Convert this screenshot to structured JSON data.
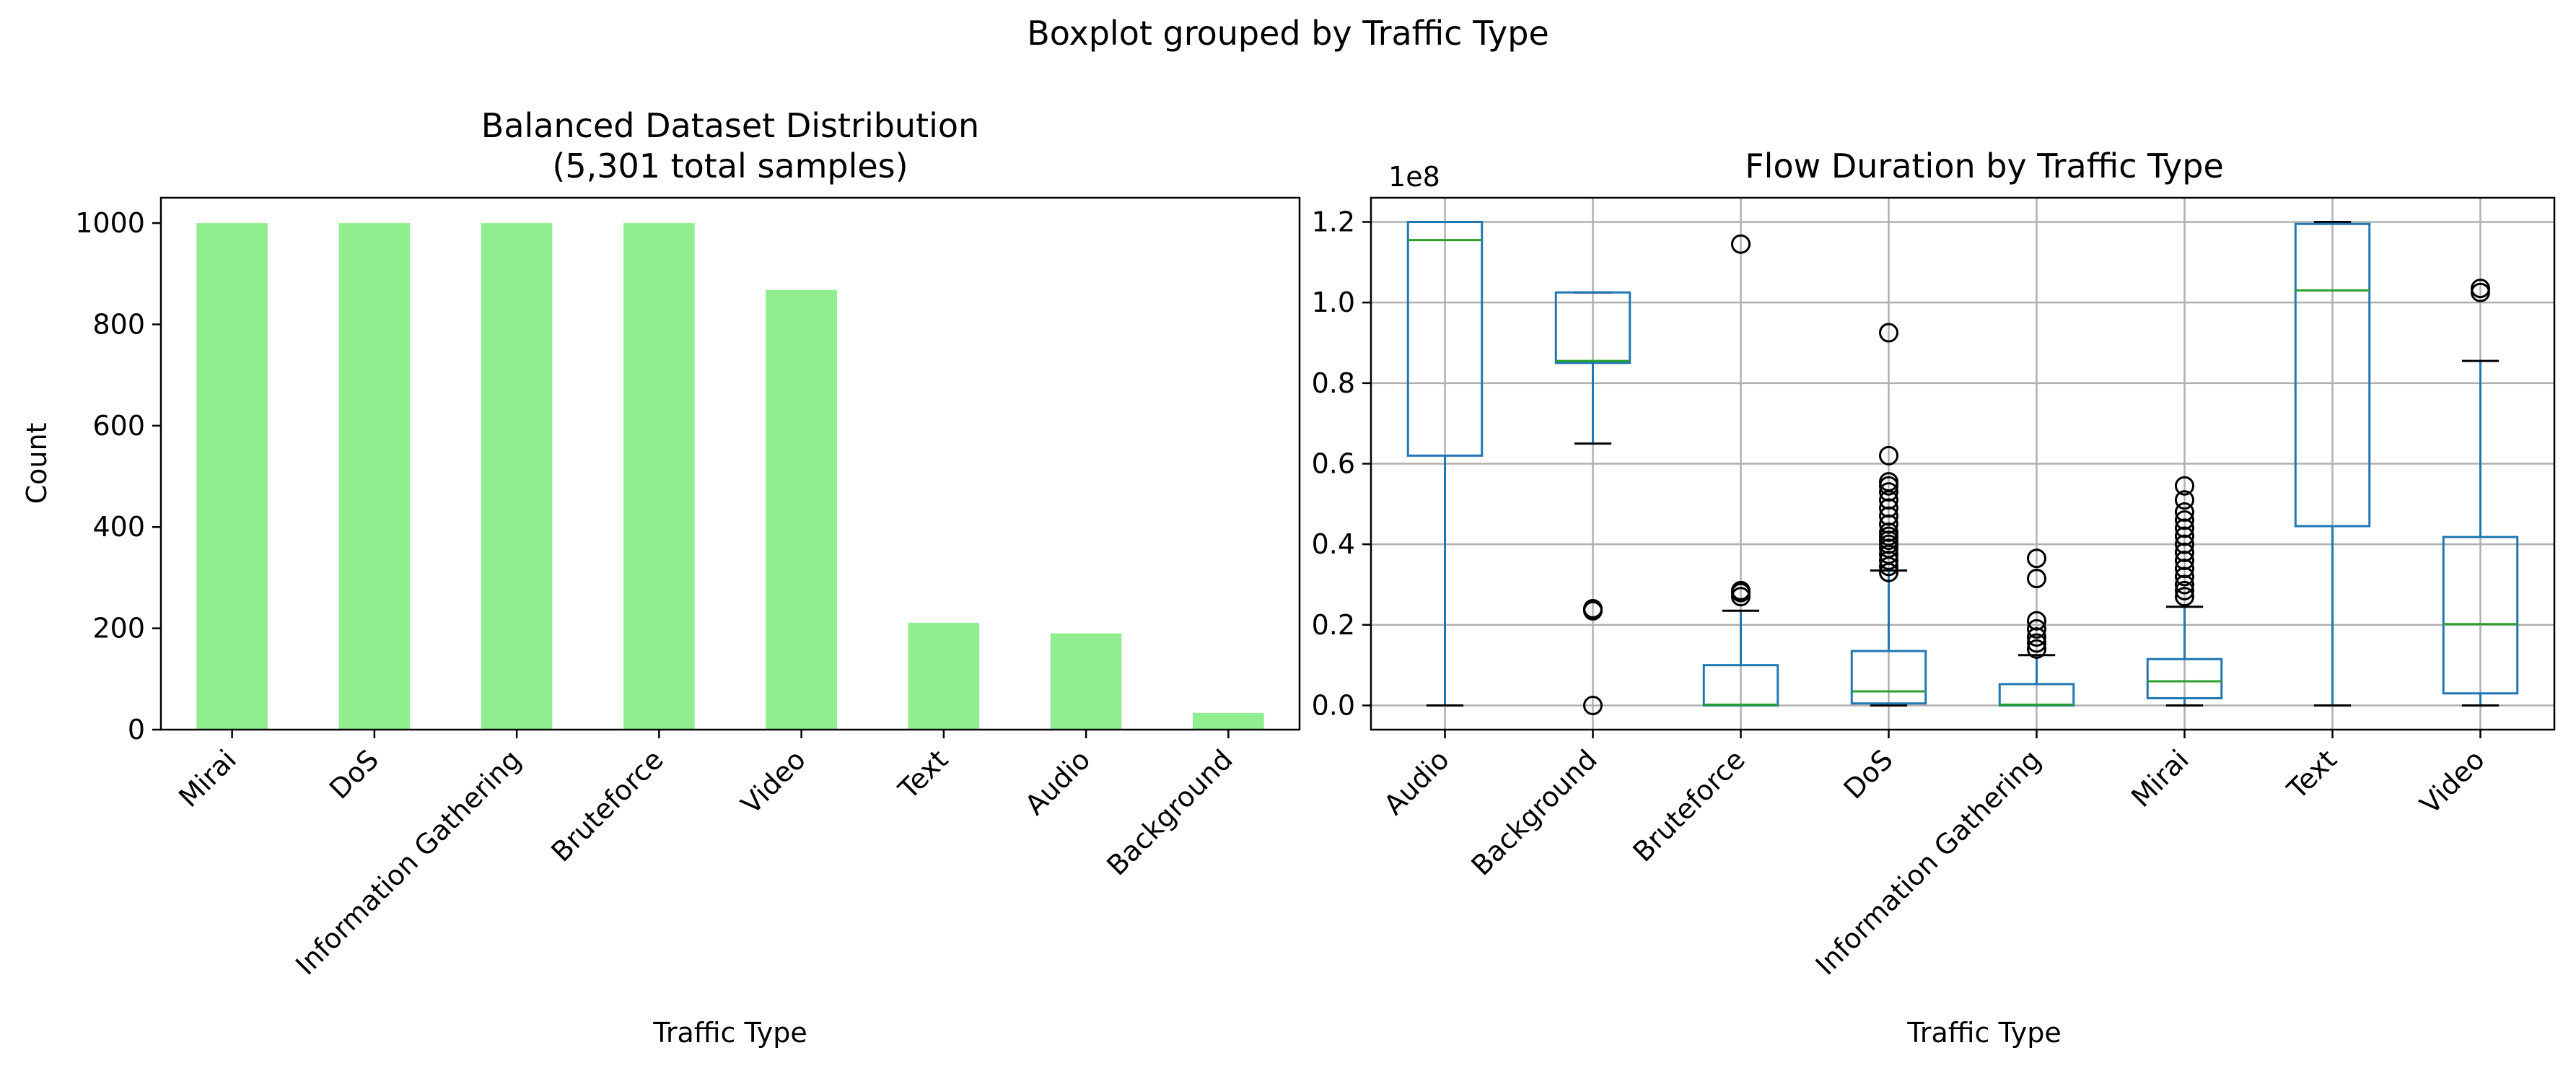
{
  "suptitle": "Boxplot grouped by Traffic Type",
  "chart_data": [
    {
      "type": "bar",
      "title_line1": "Balanced Dataset Distribution",
      "title_line2": "(5,301 total samples)",
      "xlabel": "Traffic Type",
      "ylabel": "Count",
      "categories": [
        "Mirai",
        "DoS",
        "Information Gathering",
        "Bruteforce",
        "Video",
        "Text",
        "Audio",
        "Background"
      ],
      "values": [
        1000,
        1000,
        1000,
        1000,
        868,
        211,
        190,
        33
      ],
      "ylim": [
        0,
        1050
      ],
      "yticks": [
        0,
        200,
        400,
        600,
        800,
        1000
      ],
      "bar_color": "#90ee90",
      "grid": false
    },
    {
      "type": "box",
      "title": "Flow Duration by Traffic Type",
      "xlabel": "Traffic Type",
      "ylabel": "",
      "offset_label": "1e8",
      "ylim": [
        -0.06,
        1.26
      ],
      "yticks": [
        "0.0",
        "0.2",
        "0.4",
        "0.6",
        "0.8",
        "1.0",
        "1.2"
      ],
      "grid": true,
      "box_color": "#1f77b4",
      "median_color": "#2ca02c",
      "categories": [
        "Audio",
        "Background",
        "Bruteforce",
        "DoS",
        "Information Gathering",
        "Mirai",
        "Text",
        "Video"
      ],
      "boxes": [
        {
          "whislo": 0.0,
          "q1": 0.62,
          "med": 1.155,
          "q3": 1.2,
          "whishi": 1.2,
          "fliers": []
        },
        {
          "whislo": 0.65,
          "q1": 0.85,
          "med": 0.855,
          "q3": 1.025,
          "whishi": 1.025,
          "fliers": [
            0.24,
            0.235,
            0.0
          ]
        },
        {
          "whislo": 0.0,
          "q1": 0.0,
          "med": 0.002,
          "q3": 0.1,
          "whishi": 0.235,
          "fliers": [
            0.27,
            0.28,
            0.285,
            1.145
          ]
        },
        {
          "whislo": 0.0,
          "q1": 0.005,
          "med": 0.035,
          "q3": 0.135,
          "whishi": 0.335,
          "fliers": [
            0.33,
            0.345,
            0.36,
            0.375,
            0.39,
            0.4,
            0.41,
            0.42,
            0.43,
            0.45,
            0.47,
            0.49,
            0.51,
            0.53,
            0.545,
            0.555,
            0.62,
            0.925
          ]
        },
        {
          "whislo": 0.0,
          "q1": 0.0,
          "med": 0.002,
          "q3": 0.053,
          "whishi": 0.125,
          "fliers": [
            0.14,
            0.155,
            0.17,
            0.19,
            0.21,
            0.315,
            0.365
          ]
        },
        {
          "whislo": 0.0,
          "q1": 0.018,
          "med": 0.06,
          "q3": 0.115,
          "whishi": 0.245,
          "fliers": [
            0.27,
            0.285,
            0.3,
            0.32,
            0.34,
            0.36,
            0.38,
            0.4,
            0.42,
            0.44,
            0.46,
            0.48,
            0.51,
            0.545
          ]
        },
        {
          "whislo": 0.0,
          "q1": 0.445,
          "med": 1.03,
          "q3": 1.195,
          "whishi": 1.2,
          "fliers": []
        },
        {
          "whislo": 0.0,
          "q1": 0.03,
          "med": 0.202,
          "q3": 0.418,
          "whishi": 0.855,
          "fliers": [
            1.025,
            1.035
          ]
        }
      ]
    }
  ]
}
